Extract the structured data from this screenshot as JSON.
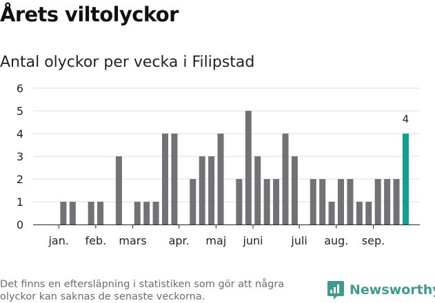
{
  "header": {
    "title": "Årets viltolyckor",
    "subtitle": "Antal olyckor per vecka i Filipstad"
  },
  "footer": {
    "note": "Det finns en eftersläpning i statistiken som gör att några olyckor kan saknas de senaste veckorna.",
    "brand": "Newsworthy"
  },
  "colors": {
    "bar": "#727176",
    "highlight": "#0fa18c",
    "grid": "#dcdcdc",
    "brand": "#3d9c8c"
  },
  "chart_data": {
    "type": "bar",
    "title": "Antal olyckor per vecka i Filipstad",
    "xlabel": "",
    "ylabel": "",
    "x": [
      1,
      2,
      3,
      4,
      5,
      6,
      7,
      8,
      9,
      10,
      11,
      12,
      13,
      14,
      15,
      16,
      17,
      18,
      19,
      20,
      21,
      22,
      23,
      24,
      25,
      26,
      27,
      28,
      29,
      30,
      31,
      32,
      33,
      34,
      35,
      36,
      37,
      38,
      39
    ],
    "values": [
      0,
      1,
      1,
      0,
      1,
      1,
      0,
      3,
      0,
      1,
      1,
      1,
      4,
      4,
      0,
      2,
      3,
      3,
      4,
      0,
      2,
      5,
      3,
      2,
      2,
      4,
      3,
      0,
      2,
      2,
      1,
      2,
      2,
      1,
      1,
      2,
      2,
      2,
      4
    ],
    "ylim": [
      0,
      6
    ],
    "yticks": [
      "0",
      "1",
      "2",
      "3",
      "4",
      "5",
      "6"
    ],
    "month_ticks": [
      {
        "label": "jan.",
        "week": 1.5
      },
      {
        "label": "feb.",
        "week": 5.5
      },
      {
        "label": "mars",
        "week": 9.5
      },
      {
        "label": "apr.",
        "week": 14.5
      },
      {
        "label": "maj",
        "week": 18.5
      },
      {
        "label": "juni",
        "week": 22.5
      },
      {
        "label": "juli",
        "week": 27.5
      },
      {
        "label": "aug.",
        "week": 31.5
      },
      {
        "label": "sep.",
        "week": 35.5
      }
    ],
    "highlight_index": 38,
    "highlight_label": "4",
    "grid": true,
    "legend": "none"
  }
}
